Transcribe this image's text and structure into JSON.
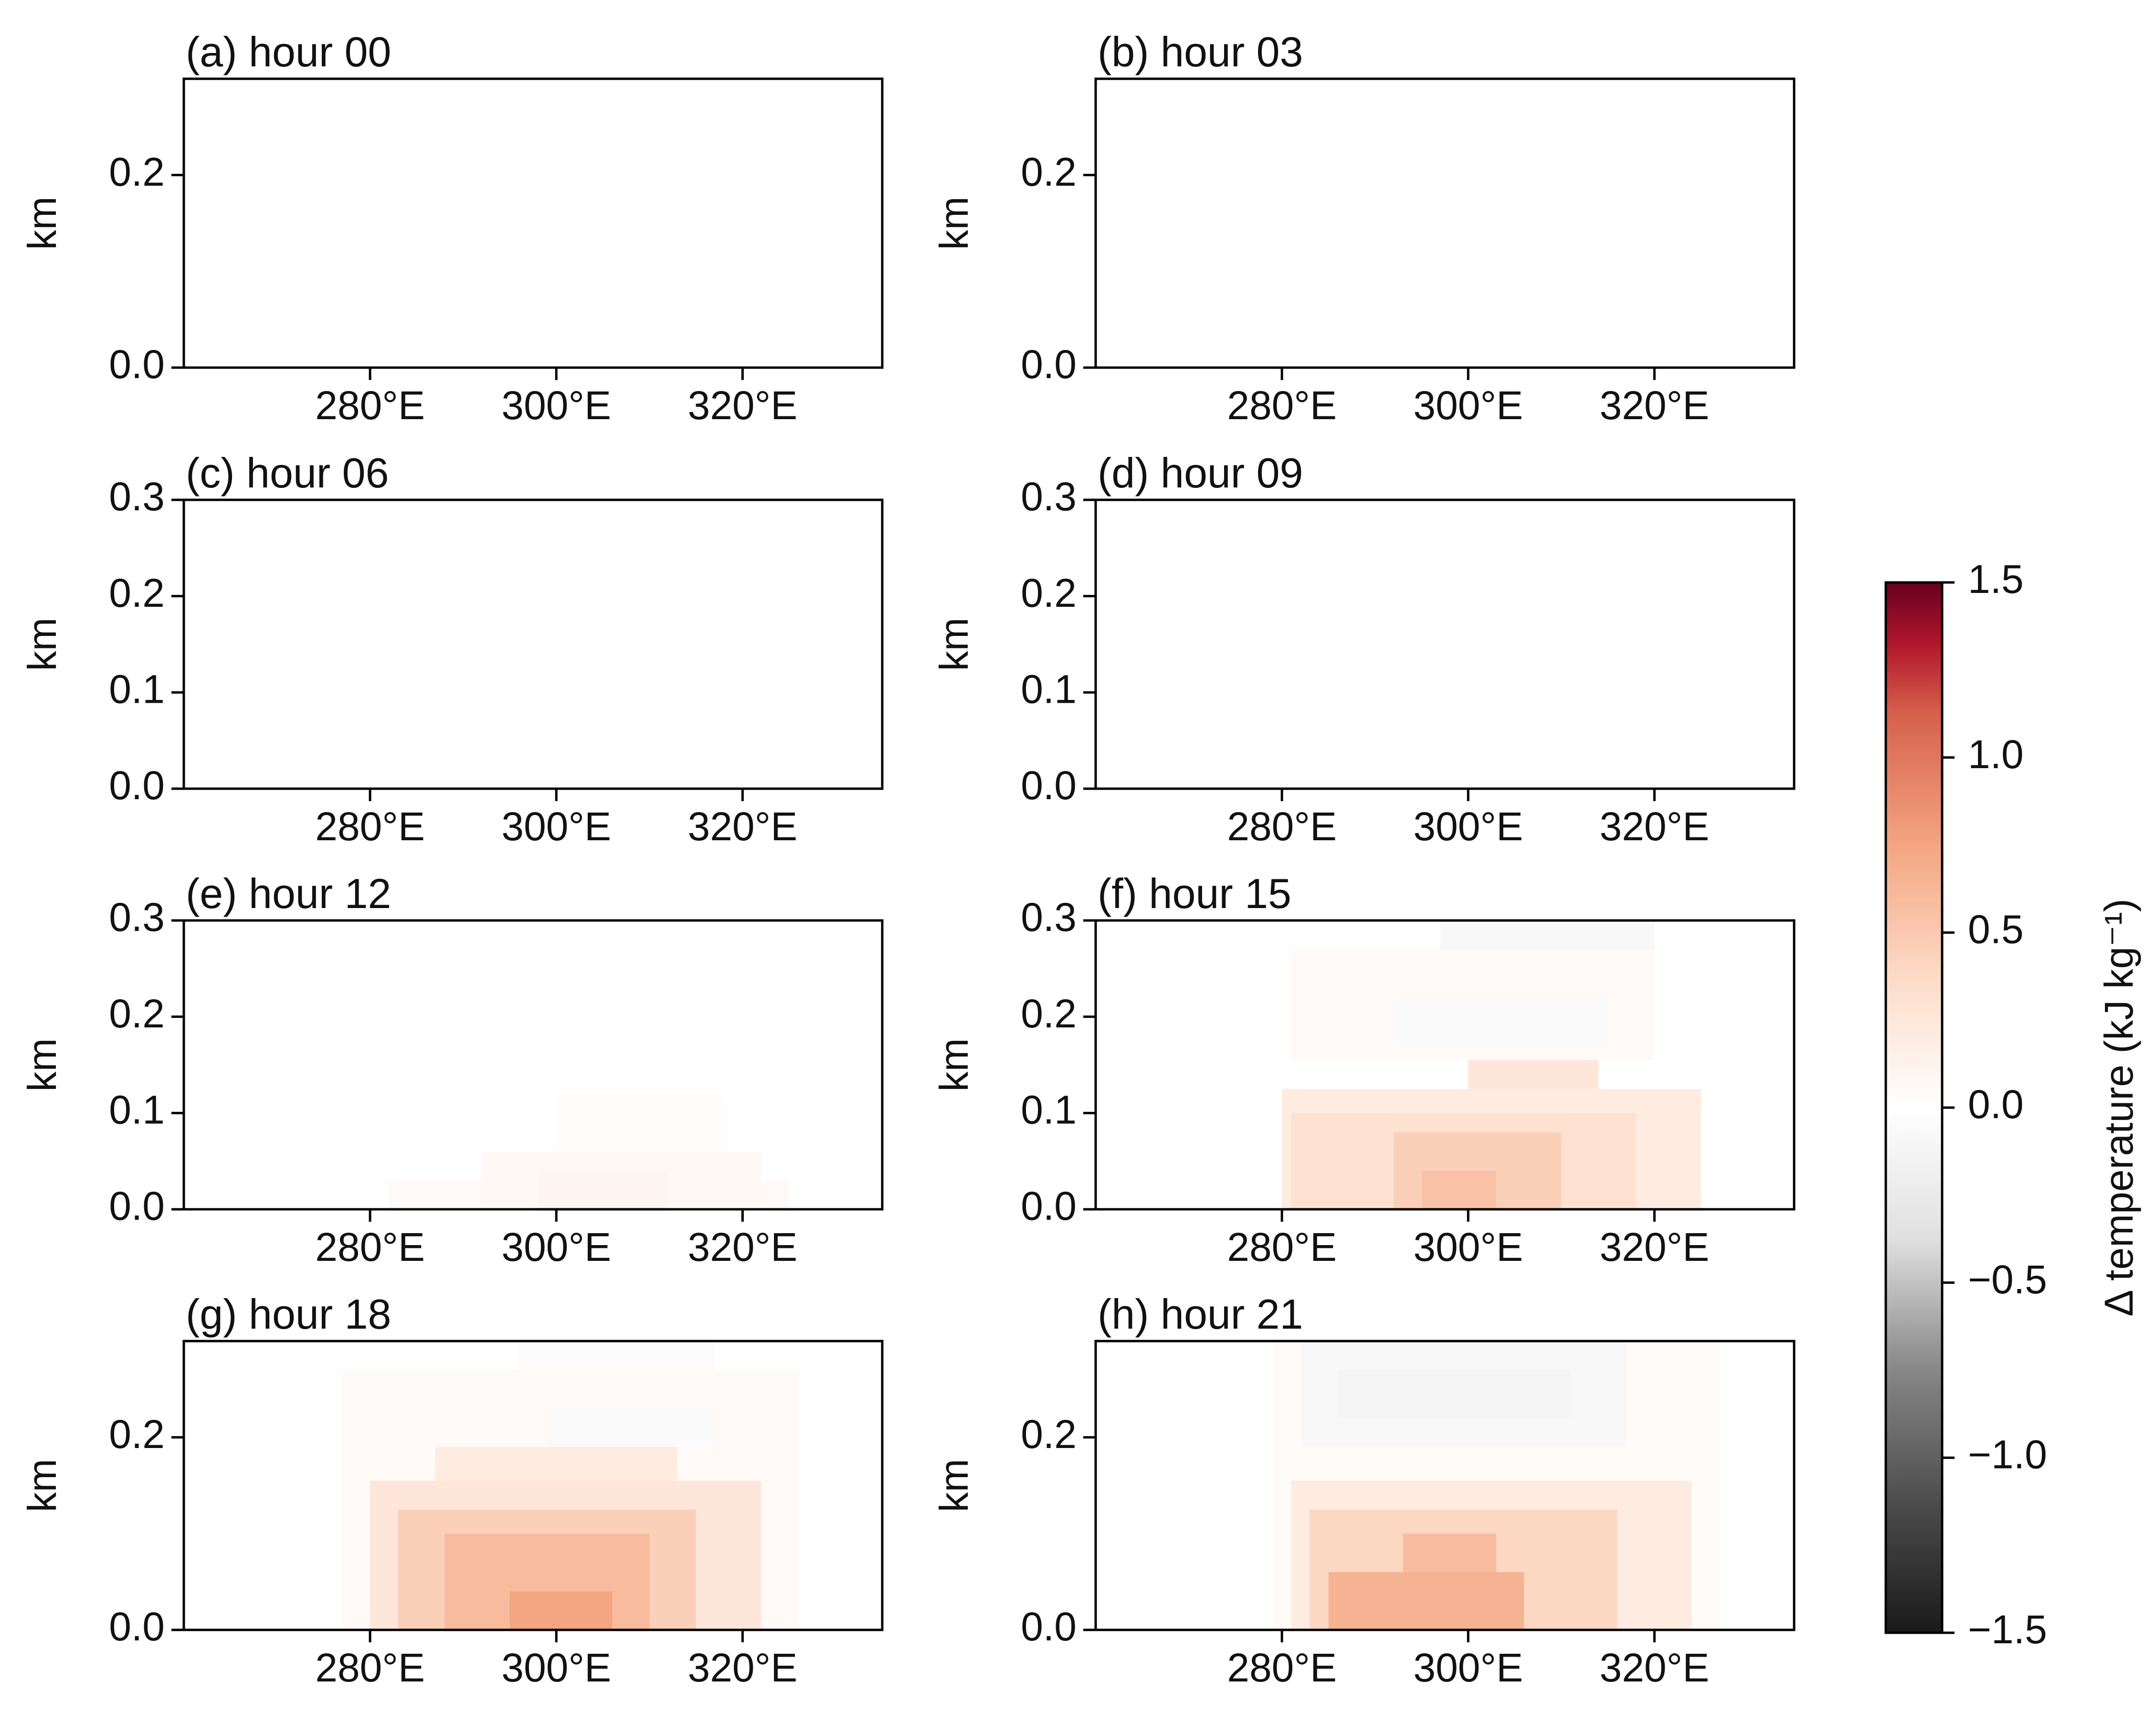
{
  "figure": {
    "colorbar": {
      "label": "Δ temperature (kJ kg⁻¹)",
      "ticks": [
        "1.5",
        "1.0",
        "0.5",
        "0.0",
        "−0.5",
        "−1.0",
        "−1.5"
      ],
      "colormap": "RdGy_r",
      "colors_low_mid_high": [
        "#1a1a1a",
        "#ffffff",
        "#67001f"
      ]
    },
    "x_tick_labels": [
      "280°E",
      "300°E",
      "320°E"
    ],
    "y_label": "km"
  },
  "chart_data": [
    {
      "type": "heatmap",
      "title": "(a) hour 00",
      "ylabel": "km",
      "x_range_deg_E": [
        260,
        335
      ],
      "ylim": [
        0,
        0.3
      ],
      "yticks": [
        "0.0",
        "0.2"
      ],
      "xticks": [
        "280°E",
        "300°E",
        "320°E"
      ],
      "anomaly_patches": []
    },
    {
      "type": "heatmap",
      "title": "(b) hour 03",
      "ylabel": "km",
      "x_range_deg_E": [
        260,
        335
      ],
      "ylim": [
        0,
        0.3
      ],
      "yticks": [
        "0.0",
        "0.2"
      ],
      "xticks": [
        "280°E",
        "300°E",
        "320°E"
      ],
      "anomaly_patches": []
    },
    {
      "type": "heatmap",
      "title": "(c) hour 06",
      "ylabel": "km",
      "x_range_deg_E": [
        260,
        335
      ],
      "ylim": [
        0,
        0.3
      ],
      "yticks": [
        "0.0",
        "0.1",
        "0.2",
        "0.3"
      ],
      "xticks": [
        "280°E",
        "300°E",
        "320°E"
      ],
      "anomaly_patches": []
    },
    {
      "type": "heatmap",
      "title": "(d) hour 09",
      "ylabel": "km",
      "x_range_deg_E": [
        260,
        335
      ],
      "ylim": [
        0,
        0.3
      ],
      "yticks": [
        "0.0",
        "0.1",
        "0.2",
        "0.3"
      ],
      "xticks": [
        "280°E",
        "300°E",
        "320°E"
      ],
      "anomaly_patches": []
    },
    {
      "type": "heatmap",
      "title": "(e) hour 12",
      "ylabel": "km",
      "x_range_deg_E": [
        260,
        335
      ],
      "ylim": [
        0,
        0.3
      ],
      "yticks": [
        "0.0",
        "0.1",
        "0.2",
        "0.3"
      ],
      "xticks": [
        "280°E",
        "300°E",
        "320°E"
      ],
      "anomaly_patches": [
        {
          "x0": 282,
          "x1": 325,
          "y0": 0.0,
          "y1": 0.03,
          "value": 0.05
        },
        {
          "x0": 292,
          "x1": 322,
          "y0": 0.0,
          "y1": 0.06,
          "value": 0.07
        },
        {
          "x0": 298,
          "x1": 312,
          "y0": 0.0,
          "y1": 0.04,
          "value": 0.1
        },
        {
          "x0": 300,
          "x1": 318,
          "y0": 0.06,
          "y1": 0.12,
          "value": 0.03
        }
      ]
    },
    {
      "type": "heatmap",
      "title": "(f) hour 15",
      "ylabel": "km",
      "x_range_deg_E": [
        260,
        335
      ],
      "ylim": [
        0,
        0.3
      ],
      "yticks": [
        "0.0",
        "0.1",
        "0.2",
        "0.3"
      ],
      "xticks": [
        "280°E",
        "300°E",
        "320°E"
      ],
      "anomaly_patches": [
        {
          "x0": 280,
          "x1": 325,
          "y0": 0.0,
          "y1": 0.125,
          "value": 0.2
        },
        {
          "x0": 281,
          "x1": 318,
          "y0": 0.0,
          "y1": 0.1,
          "value": 0.3
        },
        {
          "x0": 292,
          "x1": 310,
          "y0": 0.0,
          "y1": 0.08,
          "value": 0.45
        },
        {
          "x0": 295,
          "x1": 303,
          "y0": 0.0,
          "y1": 0.04,
          "value": 0.55
        },
        {
          "x0": 300,
          "x1": 314,
          "y0": 0.125,
          "y1": 0.155,
          "value": 0.25
        },
        {
          "x0": 281,
          "x1": 320,
          "y0": 0.155,
          "y1": 0.27,
          "value": 0.05
        },
        {
          "x0": 292,
          "x1": 315,
          "y0": 0.17,
          "y1": 0.22,
          "value": -0.06
        },
        {
          "x0": 297,
          "x1": 320,
          "y0": 0.27,
          "y1": 0.3,
          "value": -0.08
        }
      ]
    },
    {
      "type": "heatmap",
      "title": "(g) hour 18",
      "ylabel": "km",
      "x_range_deg_E": [
        260,
        335
      ],
      "ylim": [
        0,
        0.3
      ],
      "yticks": [
        "0.0",
        "0.2"
      ],
      "xticks": [
        "280°E",
        "300°E",
        "320°E"
      ],
      "anomaly_patches": [
        {
          "x0": 277,
          "x1": 326,
          "y0": 0.0,
          "y1": 0.27,
          "value": 0.05
        },
        {
          "x0": 280,
          "x1": 322,
          "y0": 0.0,
          "y1": 0.155,
          "value": 0.25
        },
        {
          "x0": 283,
          "x1": 315,
          "y0": 0.0,
          "y1": 0.125,
          "value": 0.45
        },
        {
          "x0": 288,
          "x1": 310,
          "y0": 0.0,
          "y1": 0.1,
          "value": 0.6
        },
        {
          "x0": 295,
          "x1": 306,
          "y0": 0.0,
          "y1": 0.04,
          "value": 0.75
        },
        {
          "x0": 287,
          "x1": 313,
          "y0": 0.155,
          "y1": 0.19,
          "value": 0.2
        },
        {
          "x0": 299,
          "x1": 317,
          "y0": 0.19,
          "y1": 0.23,
          "value": -0.06
        },
        {
          "x0": 296,
          "x1": 317,
          "y0": 0.27,
          "y1": 0.3,
          "value": -0.05
        }
      ]
    },
    {
      "type": "heatmap",
      "title": "(h) hour 21",
      "ylabel": "km",
      "x_range_deg_E": [
        260,
        335
      ],
      "ylim": [
        0,
        0.3
      ],
      "yticks": [
        "0.0",
        "0.2"
      ],
      "xticks": [
        "280°E",
        "300°E",
        "320°E"
      ],
      "anomaly_patches": [
        {
          "x0": 279,
          "x1": 327,
          "y0": 0.0,
          "y1": 0.3,
          "value": 0.04
        },
        {
          "x0": 281,
          "x1": 324,
          "y0": 0.0,
          "y1": 0.155,
          "value": 0.2
        },
        {
          "x0": 283,
          "x1": 316,
          "y0": 0.0,
          "y1": 0.125,
          "value": 0.4
        },
        {
          "x0": 285,
          "x1": 306,
          "y0": 0.0,
          "y1": 0.06,
          "value": 0.65
        },
        {
          "x0": 293,
          "x1": 303,
          "y0": 0.06,
          "y1": 0.1,
          "value": 0.6
        },
        {
          "x0": 282,
          "x1": 317,
          "y0": 0.19,
          "y1": 0.3,
          "value": -0.08
        },
        {
          "x0": 286,
          "x1": 311,
          "y0": 0.22,
          "y1": 0.27,
          "value": -0.12
        }
      ]
    }
  ]
}
